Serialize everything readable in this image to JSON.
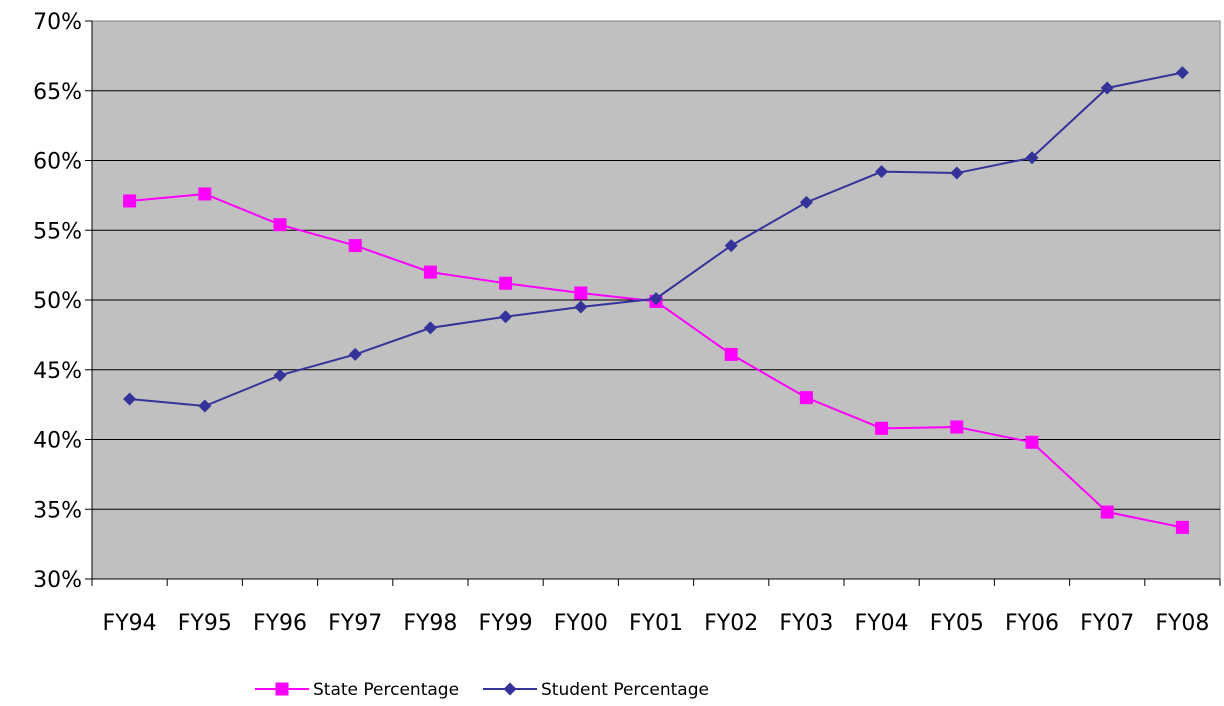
{
  "chart_data": {
    "type": "line",
    "categories": [
      "FY94",
      "FY95",
      "FY96",
      "FY97",
      "FY98",
      "FY99",
      "FY00",
      "FY01",
      "FY02",
      "FY03",
      "FY04",
      "FY05",
      "FY06",
      "FY07",
      "FY08"
    ],
    "series": [
      {
        "name": "State Percentage",
        "color": "#ff00ff",
        "marker": "square",
        "values": [
          57.1,
          57.6,
          55.4,
          53.9,
          52.0,
          51.2,
          50.5,
          49.9,
          46.1,
          43.0,
          40.8,
          40.9,
          39.8,
          34.8,
          33.7
        ]
      },
      {
        "name": "Student Percentage",
        "color": "#333399",
        "marker": "diamond",
        "values": [
          42.9,
          42.4,
          44.6,
          46.1,
          48.0,
          48.8,
          49.5,
          50.1,
          53.9,
          57.0,
          59.2,
          59.1,
          60.2,
          65.2,
          66.3
        ]
      }
    ],
    "yticks": [
      "30%",
      "35%",
      "40%",
      "45%",
      "50%",
      "55%",
      "60%",
      "65%",
      "70%"
    ],
    "ylim": [
      30,
      70
    ],
    "grid": true,
    "legend_position": "bottom",
    "plot_background": "#c0c0c0"
  }
}
